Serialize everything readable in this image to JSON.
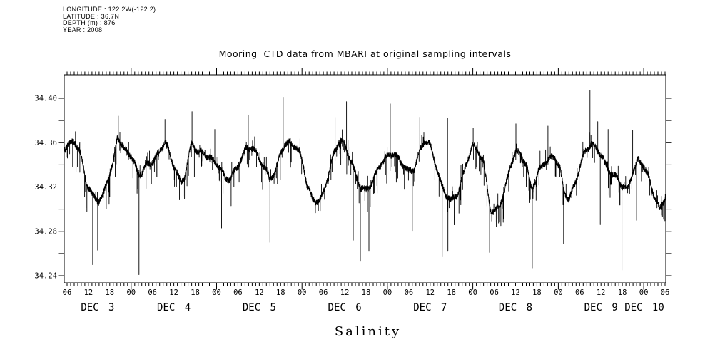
{
  "header_block": {
    "longitude": "LONGITUDE : 122.2W(-122.2)",
    "latitude": "LATITUDE : 36.7N",
    "depth": "DEPTH (m) : 876",
    "year": "YEAR : 2008"
  },
  "chart_data": {
    "type": "line",
    "title": "Mooring  CTD data from MBARI at original sampling intervals",
    "ylabel": "Salinity",
    "xlabel": "",
    "legend": "none",
    "grid": false,
    "line_color": "#000000",
    "background": "#ffffff",
    "ylim": [
      34.2336,
      34.4212
    ],
    "ytick_values": [
      34.24,
      34.28,
      34.32,
      34.36,
      34.4
    ],
    "ytick_labels": [
      "34.24",
      "34.28",
      "34.32",
      "34.36",
      "34.40"
    ],
    "ytick_minor_step": 0.02,
    "time_axis": {
      "year": 2008,
      "t_unit": "hours since 2008-12-03 00:00",
      "t_start": 5.2,
      "t_end": 174.2,
      "minor_tick_hours": 1,
      "major_tick_hours": 24,
      "label_step_hours": 6,
      "first_label_t": 6,
      "hour_tick_labels": [
        "06",
        "12",
        "18",
        "00",
        "06",
        "12",
        "18",
        "00",
        "06",
        "12",
        "18",
        "00",
        "06",
        "12",
        "18",
        "00",
        "06",
        "12",
        "18",
        "00",
        "06",
        "12",
        "18",
        "00",
        "06",
        "12",
        "18",
        "00",
        "06"
      ],
      "day_labels": [
        "DEC 3",
        "DEC 4",
        "DEC 5",
        "DEC 6",
        "DEC 7",
        "DEC 8",
        "DEC 9",
        "DEC 10"
      ]
    },
    "series": [
      {
        "name": "salinity",
        "anchors_t_hours_value": [
          [
            5.2,
            34.356
          ],
          [
            7,
            34.36
          ],
          [
            8,
            34.362
          ],
          [
            9,
            34.355
          ],
          [
            10,
            34.346
          ],
          [
            11.5,
            34.322
          ],
          [
            13,
            34.312
          ],
          [
            15,
            34.308
          ],
          [
            16,
            34.312
          ],
          [
            17,
            34.324
          ],
          [
            19,
            34.342
          ],
          [
            20.2,
            34.367
          ],
          [
            21,
            34.36
          ],
          [
            22,
            34.353
          ],
          [
            24,
            34.348
          ],
          [
            25,
            34.34
          ],
          [
            26,
            34.331
          ],
          [
            27,
            34.334
          ],
          [
            28,
            34.34
          ],
          [
            30,
            34.344
          ],
          [
            32,
            34.352
          ],
          [
            33.6,
            34.361
          ],
          [
            35,
            34.346
          ],
          [
            36.5,
            34.335
          ],
          [
            38,
            34.323
          ],
          [
            39,
            34.33
          ],
          [
            39.8,
            34.343
          ],
          [
            41,
            34.36
          ],
          [
            42,
            34.356
          ],
          [
            43,
            34.352
          ],
          [
            45,
            34.348
          ],
          [
            47,
            34.343
          ],
          [
            49,
            34.337
          ],
          [
            50.5,
            34.328
          ],
          [
            52,
            34.33
          ],
          [
            53.5,
            34.337
          ],
          [
            55,
            34.346
          ],
          [
            56.5,
            34.355
          ],
          [
            58,
            34.354
          ],
          [
            59.5,
            34.348
          ],
          [
            60.5,
            34.342
          ],
          [
            61.5,
            34.337
          ],
          [
            63,
            34.329
          ],
          [
            64.5,
            34.334
          ],
          [
            66,
            34.352
          ],
          [
            67,
            34.358
          ],
          [
            68.5,
            34.359
          ],
          [
            70,
            34.356
          ],
          [
            71.5,
            34.349
          ],
          [
            72.5,
            34.338
          ],
          [
            73.5,
            34.32
          ],
          [
            75,
            34.31
          ],
          [
            77,
            34.308
          ],
          [
            78,
            34.316
          ],
          [
            79.5,
            34.332
          ],
          [
            81,
            34.35
          ],
          [
            82.5,
            34.361
          ],
          [
            84,
            34.357
          ],
          [
            85.5,
            34.346
          ],
          [
            87,
            34.333
          ],
          [
            88.5,
            34.321
          ],
          [
            90,
            34.317
          ],
          [
            91,
            34.321
          ],
          [
            92.5,
            34.329
          ],
          [
            94,
            34.339
          ],
          [
            96,
            34.347
          ],
          [
            97.5,
            34.351
          ],
          [
            99,
            34.347
          ],
          [
            100.5,
            34.341
          ],
          [
            102,
            34.334
          ],
          [
            103.5,
            34.336
          ],
          [
            105,
            34.35
          ],
          [
            106.5,
            34.361
          ],
          [
            108,
            34.357
          ],
          [
            109.5,
            34.342
          ],
          [
            111,
            34.324
          ],
          [
            112.5,
            34.314
          ],
          [
            114,
            34.308
          ],
          [
            115.5,
            34.312
          ],
          [
            117,
            34.326
          ],
          [
            118.5,
            34.344
          ],
          [
            120,
            34.357
          ],
          [
            121.5,
            34.353
          ],
          [
            123,
            34.344
          ],
          [
            124,
            34.322
          ],
          [
            125,
            34.3
          ],
          [
            126,
            34.297
          ],
          [
            127.5,
            34.303
          ],
          [
            129,
            34.316
          ],
          [
            130.5,
            34.338
          ],
          [
            132,
            34.351
          ],
          [
            133.5,
            34.35
          ],
          [
            135,
            34.341
          ],
          [
            136.5,
            34.32
          ],
          [
            137.5,
            34.326
          ],
          [
            138.5,
            34.334
          ],
          [
            140,
            34.341
          ],
          [
            141.5,
            34.344
          ],
          [
            143,
            34.347
          ],
          [
            144.5,
            34.336
          ],
          [
            145.5,
            34.318
          ],
          [
            147,
            34.31
          ],
          [
            148.5,
            34.322
          ],
          [
            150,
            34.338
          ],
          [
            151.5,
            34.351
          ],
          [
            153,
            34.357
          ],
          [
            154.5,
            34.355
          ],
          [
            156,
            34.349
          ],
          [
            157.5,
            34.34
          ],
          [
            159,
            34.333
          ],
          [
            160.5,
            34.329
          ],
          [
            162,
            34.321
          ],
          [
            163.5,
            34.317
          ],
          [
            165,
            34.334
          ],
          [
            166.5,
            34.343
          ],
          [
            168,
            34.34
          ],
          [
            169.5,
            34.328
          ],
          [
            171,
            34.313
          ],
          [
            172.5,
            34.3
          ],
          [
            173.5,
            34.307
          ],
          [
            174.2,
            34.312
          ]
        ],
        "spikes_down": [
          [
            13.2,
            34.25
          ],
          [
            14.6,
            34.263
          ],
          [
            26.2,
            34.241
          ],
          [
            49.4,
            34.283
          ],
          [
            63.0,
            34.27
          ],
          [
            86.4,
            34.272
          ],
          [
            88.4,
            34.253
          ],
          [
            90.8,
            34.262
          ],
          [
            103.0,
            34.28
          ],
          [
            111.4,
            34.257
          ],
          [
            113.0,
            34.262
          ],
          [
            124.7,
            34.261
          ],
          [
            136.7,
            34.247
          ],
          [
            145.5,
            34.269
          ],
          [
            155.8,
            34.286
          ],
          [
            161.9,
            34.245
          ],
          [
            166.0,
            34.29
          ],
          [
            172.3,
            34.281
          ]
        ],
        "spikes_up": [
          [
            20.4,
            34.384
          ],
          [
            33.5,
            34.381
          ],
          [
            41.1,
            34.388
          ],
          [
            47.5,
            34.372
          ],
          [
            56.9,
            34.385
          ],
          [
            66.7,
            34.401
          ],
          [
            81.3,
            34.383
          ],
          [
            84.5,
            34.397
          ],
          [
            96.8,
            34.395
          ],
          [
            105.1,
            34.383
          ],
          [
            112.9,
            34.382
          ],
          [
            120.1,
            34.373
          ],
          [
            132.1,
            34.377
          ],
          [
            141.1,
            34.375
          ],
          [
            152.9,
            34.407
          ],
          [
            155.1,
            34.379
          ],
          [
            158.0,
            34.372
          ],
          [
            164.9,
            34.371
          ]
        ]
      }
    ],
    "noise": {
      "seed": 20081203,
      "samples_per_hour": 30,
      "jitter": 0.0026,
      "hair_down_prob": 0.055,
      "hair_down_max": 0.024,
      "hair_up_prob": 0.028,
      "hair_up_max": 0.013
    }
  }
}
